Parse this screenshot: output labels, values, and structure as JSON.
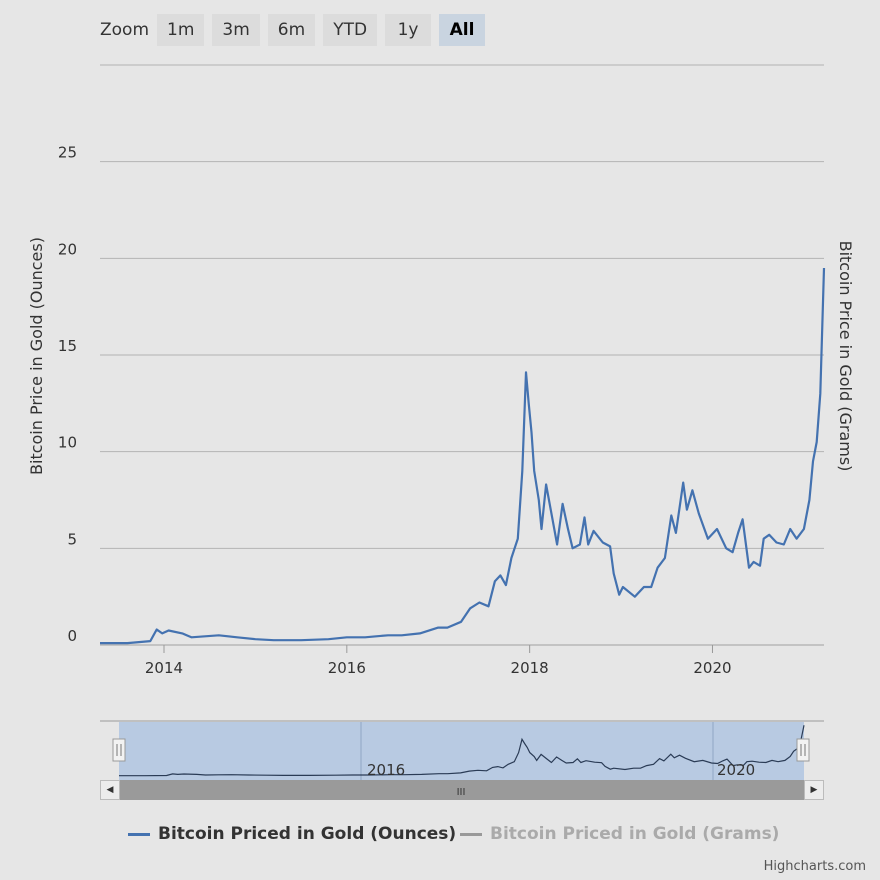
{
  "zoom": {
    "label": "Zoom",
    "buttons": [
      "1m",
      "3m",
      "6m",
      "YTD",
      "1y",
      "All"
    ],
    "selected": "All"
  },
  "colors": {
    "series_ounces": "#4472b0",
    "series_grams": "#999999",
    "navigator_fill": "#a8c0e0",
    "navigator_line": "#2a3b55"
  },
  "chart_data": {
    "type": "line",
    "x_ticks": [
      "2014",
      "2016",
      "2018",
      "2020"
    ],
    "y_ticks": [
      "0",
      "5",
      "10",
      "15",
      "20",
      "25"
    ],
    "ylim": [
      0,
      30
    ],
    "ylabel": "Bitcoin Price in Gold (Ounces)",
    "y2label": "Bitcoin Price in Gold (Grams)",
    "grid": "horizontal",
    "legend_position": "bottom",
    "series": [
      {
        "name": "Bitcoin Priced in Gold (Ounces)",
        "visible": true,
        "points": [
          [
            2013.3,
            0.1
          ],
          [
            2013.6,
            0.1
          ],
          [
            2013.85,
            0.2
          ],
          [
            2013.92,
            0.8
          ],
          [
            2013.98,
            0.6
          ],
          [
            2014.05,
            0.75
          ],
          [
            2014.2,
            0.6
          ],
          [
            2014.3,
            0.4
          ],
          [
            2014.45,
            0.45
          ],
          [
            2014.6,
            0.5
          ],
          [
            2014.8,
            0.4
          ],
          [
            2015.0,
            0.3
          ],
          [
            2015.2,
            0.25
          ],
          [
            2015.5,
            0.25
          ],
          [
            2015.8,
            0.3
          ],
          [
            2016.0,
            0.4
          ],
          [
            2016.2,
            0.4
          ],
          [
            2016.45,
            0.5
          ],
          [
            2016.6,
            0.5
          ],
          [
            2016.8,
            0.6
          ],
          [
            2017.0,
            0.9
          ],
          [
            2017.1,
            0.9
          ],
          [
            2017.25,
            1.2
          ],
          [
            2017.35,
            1.9
          ],
          [
            2017.45,
            2.2
          ],
          [
            2017.55,
            2.0
          ],
          [
            2017.62,
            3.3
          ],
          [
            2017.68,
            3.6
          ],
          [
            2017.74,
            3.1
          ],
          [
            2017.8,
            4.5
          ],
          [
            2017.87,
            5.5
          ],
          [
            2017.92,
            9.0
          ],
          [
            2017.96,
            14.1
          ],
          [
            2017.99,
            12.5
          ],
          [
            2018.02,
            11.0
          ],
          [
            2018.05,
            9.0
          ],
          [
            2018.1,
            7.5
          ],
          [
            2018.13,
            6.0
          ],
          [
            2018.18,
            8.3
          ],
          [
            2018.25,
            6.5
          ],
          [
            2018.3,
            5.2
          ],
          [
            2018.36,
            7.3
          ],
          [
            2018.42,
            6.0
          ],
          [
            2018.47,
            5.0
          ],
          [
            2018.55,
            5.2
          ],
          [
            2018.6,
            6.6
          ],
          [
            2018.64,
            5.2
          ],
          [
            2018.7,
            5.9
          ],
          [
            2018.8,
            5.3
          ],
          [
            2018.88,
            5.1
          ],
          [
            2018.92,
            3.7
          ],
          [
            2018.98,
            2.6
          ],
          [
            2019.02,
            3.0
          ],
          [
            2019.15,
            2.5
          ],
          [
            2019.25,
            3.0
          ],
          [
            2019.33,
            3.0
          ],
          [
            2019.4,
            4.0
          ],
          [
            2019.48,
            4.5
          ],
          [
            2019.55,
            6.7
          ],
          [
            2019.6,
            5.8
          ],
          [
            2019.68,
            8.4
          ],
          [
            2019.72,
            7.0
          ],
          [
            2019.78,
            8.0
          ],
          [
            2019.85,
            6.8
          ],
          [
            2019.95,
            5.5
          ],
          [
            2020.05,
            6.0
          ],
          [
            2020.15,
            5.0
          ],
          [
            2020.22,
            4.8
          ],
          [
            2020.28,
            5.8
          ],
          [
            2020.33,
            6.5
          ],
          [
            2020.4,
            4.0
          ],
          [
            2020.45,
            4.3
          ],
          [
            2020.52,
            4.1
          ],
          [
            2020.56,
            5.5
          ],
          [
            2020.62,
            5.7
          ],
          [
            2020.7,
            5.3
          ],
          [
            2020.78,
            5.2
          ],
          [
            2020.85,
            6.0
          ],
          [
            2020.92,
            5.5
          ],
          [
            2021.0,
            6.0
          ],
          [
            2021.06,
            7.5
          ],
          [
            2021.1,
            9.5
          ],
          [
            2021.14,
            10.5
          ],
          [
            2021.18,
            13.0
          ],
          [
            2021.22,
            19.5
          ]
        ]
      },
      {
        "name": "Bitcoin Priced in Gold (Grams)",
        "visible": false,
        "points": []
      }
    ]
  },
  "navigator": {
    "labels": [
      "2016",
      "2020"
    ],
    "scroll_grip": "III"
  },
  "credit": "Highcharts.com"
}
